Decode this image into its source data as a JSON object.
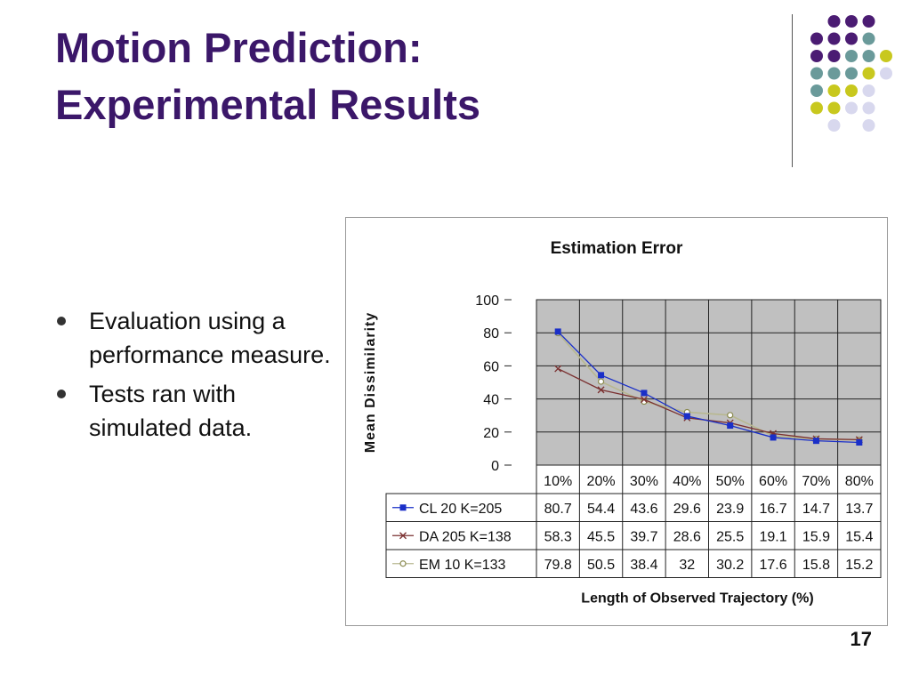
{
  "slide": {
    "title_lines": [
      "Motion Prediction:",
      "Experimental Results"
    ],
    "bullets": [
      "Evaluation using a performance measure.",
      "Tests ran with simulated data."
    ],
    "page_number": "17",
    "colors": {
      "title": "#3b1769",
      "dot_purple": "#4b1c73",
      "dot_teal": "#6a9a9a",
      "dot_yellow": "#c8c81e",
      "dot_lavender": "#d8d8ee"
    }
  },
  "chart_data": {
    "type": "line",
    "title": "Estimation Error",
    "xlabel": "Length of Observed Trajectory (%)",
    "ylabel": "Mean Dissimilarity",
    "ylim": [
      0,
      100
    ],
    "yticks": [
      "0",
      "20",
      "40",
      "60",
      "80",
      "100"
    ],
    "categories": [
      "10%",
      "20%",
      "30%",
      "40%",
      "50%",
      "60%",
      "70%",
      "80%"
    ],
    "grid": true,
    "legend": "data-table",
    "series": [
      {
        "name": "CL 20 K=205",
        "color": "#1a2fc8",
        "marker": "square",
        "values": [
          80.7,
          54.4,
          43.6,
          29.6,
          23.9,
          16.7,
          14.7,
          13.7
        ],
        "labels": [
          "80.7",
          "54.4",
          "43.6",
          "29.6",
          "23.9",
          "16.7",
          "14.7",
          "13.7"
        ]
      },
      {
        "name": "DA 205 K=138",
        "color": "#7a3030",
        "marker": "x",
        "values": [
          58.3,
          45.5,
          39.7,
          28.6,
          25.5,
          19.1,
          15.9,
          15.4
        ],
        "labels": [
          "58.3",
          "45.5",
          "39.7",
          "28.6",
          "25.5",
          "19.1",
          "15.9",
          "15.4"
        ]
      },
      {
        "name": "EM 10 K=133",
        "color": "#b8b890",
        "marker": "circle",
        "values": [
          79.8,
          50.5,
          38.4,
          32,
          30.2,
          17.6,
          15.8,
          15.2
        ],
        "labels": [
          "79.8",
          "50.5",
          "38.4",
          "32",
          "30.2",
          "17.6",
          "15.8",
          "15.2"
        ]
      }
    ]
  }
}
